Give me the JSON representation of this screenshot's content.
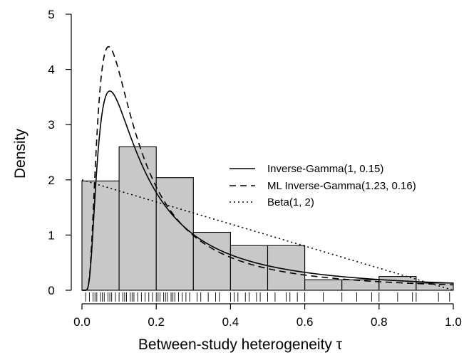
{
  "chart_data": {
    "type": "histogram",
    "xlabel": "Between-study heterogeneity τ",
    "ylabel": "Density",
    "xlim": [
      0,
      1
    ],
    "ylim": [
      0,
      5
    ],
    "x_ticks": [
      "0.0",
      "0.2",
      "0.4",
      "0.6",
      "0.8",
      "1.0"
    ],
    "y_ticks": [
      "0",
      "1",
      "2",
      "3",
      "4",
      "5"
    ],
    "histogram": {
      "bin_edges": [
        0,
        0.1,
        0.2,
        0.3,
        0.4,
        0.5,
        0.6,
        0.7,
        0.8,
        0.9,
        1.0
      ],
      "densities": [
        1.98,
        2.6,
        2.04,
        1.05,
        0.81,
        0.81,
        0.19,
        0.19,
        0.25,
        0.13
      ]
    },
    "rug": [
      0.01,
      0.02,
      0.03,
      0.035,
      0.04,
      0.05,
      0.055,
      0.06,
      0.07,
      0.075,
      0.08,
      0.09,
      0.1,
      0.11,
      0.115,
      0.12,
      0.13,
      0.135,
      0.14,
      0.15,
      0.16,
      0.17,
      0.18,
      0.19,
      0.2,
      0.205,
      0.21,
      0.22,
      0.225,
      0.23,
      0.24,
      0.245,
      0.25,
      0.26,
      0.27,
      0.28,
      0.29,
      0.31,
      0.32,
      0.34,
      0.36,
      0.37,
      0.4,
      0.41,
      0.42,
      0.44,
      0.45,
      0.47,
      0.48,
      0.5,
      0.52,
      0.55,
      0.56,
      0.58,
      0.6,
      0.65,
      0.7,
      0.74,
      0.78,
      0.8,
      0.85,
      0.89,
      0.9,
      0.96,
      0.99
    ],
    "series": [
      {
        "name": "Inverse-Gamma(1, 0.15)",
        "style": "solid",
        "dist": "invgamma",
        "shape": 1,
        "scale": 0.15
      },
      {
        "name": "ML Inverse-Gamma(1.23, 0.16)",
        "style": "dashed",
        "dist": "invgamma",
        "shape": 1.23,
        "scale": 0.16
      },
      {
        "name": "Beta(1, 2)",
        "style": "dotted",
        "dist": "beta",
        "a": 1,
        "b": 2
      }
    ],
    "legend": {
      "position": "center-right"
    }
  }
}
